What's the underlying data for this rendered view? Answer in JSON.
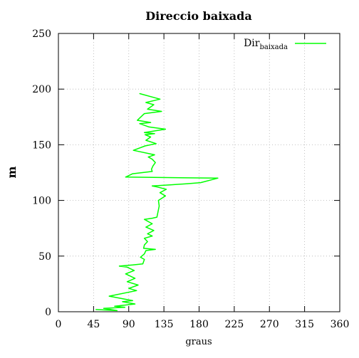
{
  "chart_data": {
    "type": "line",
    "title": "Direccio baixada",
    "xlabel": "graus",
    "ylabel": "m",
    "xlim": [
      0,
      360
    ],
    "ylim": [
      0,
      250
    ],
    "xticks": [
      0,
      45,
      90,
      135,
      180,
      225,
      270,
      315,
      360
    ],
    "yticks": [
      0,
      50,
      100,
      150,
      200,
      250
    ],
    "grid": true,
    "legend_position": "top-right",
    "series": [
      {
        "name": "Dir",
        "name_subscript": "baixada",
        "color": "#00ff00",
        "points": [
          [
            48,
            2
          ],
          [
            75,
            1
          ],
          [
            58,
            3
          ],
          [
            85,
            4
          ],
          [
            72,
            5
          ],
          [
            98,
            7
          ],
          [
            82,
            9
          ],
          [
            95,
            10
          ],
          [
            65,
            14
          ],
          [
            100,
            19
          ],
          [
            90,
            21
          ],
          [
            102,
            24
          ],
          [
            88,
            27
          ],
          [
            98,
            30
          ],
          [
            86,
            34
          ],
          [
            97,
            37
          ],
          [
            88,
            40
          ],
          [
            78,
            41
          ],
          [
            95,
            42
          ],
          [
            108,
            43
          ],
          [
            110,
            47
          ],
          [
            105,
            49
          ],
          [
            110,
            52
          ],
          [
            112,
            55
          ],
          [
            124,
            56
          ],
          [
            109,
            57
          ],
          [
            110,
            60
          ],
          [
            114,
            63
          ],
          [
            110,
            66
          ],
          [
            120,
            68
          ],
          [
            114,
            70
          ],
          [
            122,
            73
          ],
          [
            112,
            76
          ],
          [
            120,
            79
          ],
          [
            110,
            83
          ],
          [
            120,
            84
          ],
          [
            126,
            85
          ],
          [
            129,
            95
          ],
          [
            128,
            100
          ],
          [
            137,
            104
          ],
          [
            130,
            107
          ],
          [
            138,
            110
          ],
          [
            127,
            112
          ],
          [
            120,
            113
          ],
          [
            143,
            114
          ],
          [
            165,
            115
          ],
          [
            182,
            116
          ],
          [
            204,
            120
          ],
          [
            86,
            121
          ],
          [
            95,
            124
          ],
          [
            120,
            126
          ],
          [
            119,
            128
          ],
          [
            121,
            131
          ],
          [
            124,
            134
          ],
          [
            120,
            137
          ],
          [
            115,
            139
          ],
          [
            123,
            141
          ],
          [
            96,
            145
          ],
          [
            111,
            149
          ],
          [
            125,
            151
          ],
          [
            112,
            154
          ],
          [
            118,
            157
          ],
          [
            111,
            159
          ],
          [
            123,
            160
          ],
          [
            110,
            161
          ],
          [
            137,
            164
          ],
          [
            116,
            166
          ],
          [
            104,
            169
          ],
          [
            118,
            170
          ],
          [
            101,
            172
          ],
          [
            107,
            176
          ],
          [
            110,
            178
          ],
          [
            132,
            180
          ],
          [
            114,
            182
          ],
          [
            122,
            186
          ],
          [
            112,
            188
          ],
          [
            130,
            191
          ],
          [
            104,
            196
          ]
        ]
      }
    ]
  }
}
